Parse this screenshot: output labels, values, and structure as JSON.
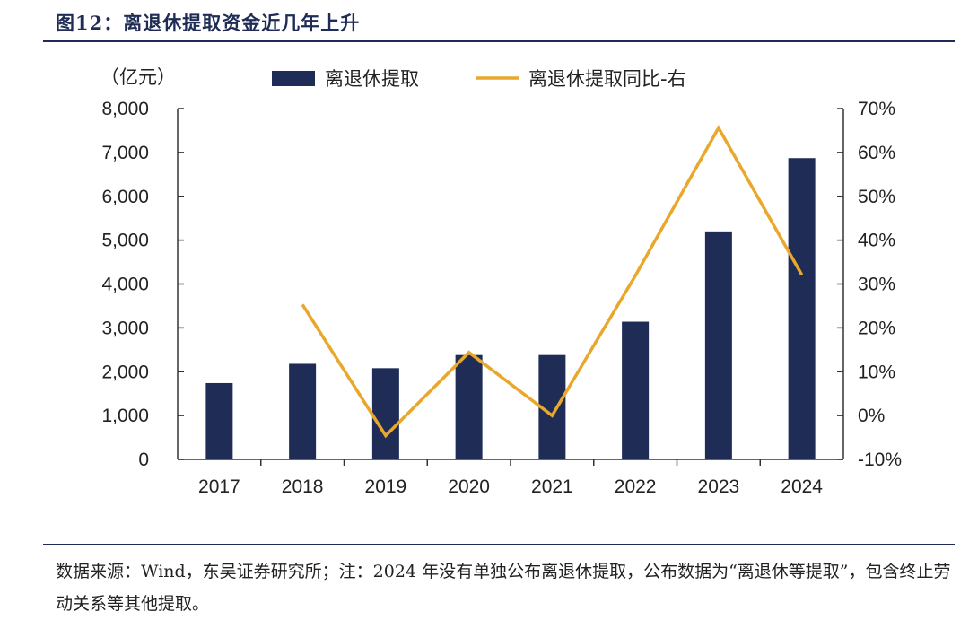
{
  "figure": {
    "title": "图12：离退休提取资金近几年上升",
    "source": "数据来源：Wind，东吴证券研究所；注：2024 年没有单独公布离退休提取，公布数据为“离退休等提取”，包含终止劳动关系等其他提取。"
  },
  "colors": {
    "bar": "#1f2d56",
    "line": "#e9a72b",
    "axis": "#333333",
    "title": "#1f2d56"
  },
  "chart_data": {
    "type": "bar+line",
    "categories": [
      "2017",
      "2018",
      "2019",
      "2020",
      "2021",
      "2022",
      "2023",
      "2024"
    ],
    "series": [
      {
        "name": "离退休提取",
        "type": "bar",
        "axis": "left",
        "values": [
          1740,
          2180,
          2080,
          2380,
          2380,
          3140,
          5200,
          6870
        ]
      },
      {
        "name": "离退休提取同比-右",
        "type": "line",
        "axis": "right",
        "values": [
          null,
          25.3,
          -4.6,
          14.4,
          0.0,
          31.9,
          65.6,
          32.1
        ]
      }
    ],
    "left_axis": {
      "unit_label": "（亿元）",
      "min": 0,
      "max": 8000,
      "step": 1000,
      "tick_labels": [
        "0",
        "1,000",
        "2,000",
        "3,000",
        "4,000",
        "5,000",
        "6,000",
        "7,000",
        "8,000"
      ]
    },
    "right_axis": {
      "min": -10,
      "max": 70,
      "step": 10,
      "tick_labels": [
        "-10%",
        "0%",
        "10%",
        "20%",
        "30%",
        "40%",
        "50%",
        "60%",
        "70%"
      ]
    },
    "legend_position": "top-center"
  }
}
